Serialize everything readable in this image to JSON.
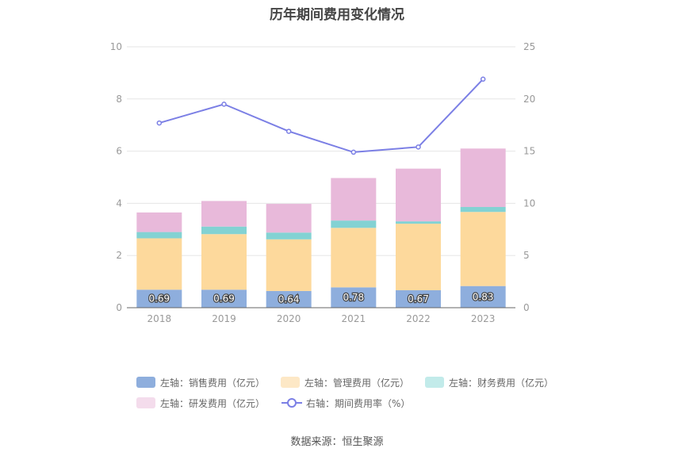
{
  "chart_data": {
    "type": "bar",
    "title": "历年期间费用变化情况",
    "categories": [
      "2018",
      "2019",
      "2020",
      "2021",
      "2022",
      "2023"
    ],
    "stacked": true,
    "left_axis": {
      "ylim": [
        0,
        10
      ],
      "ticks": [
        0,
        2,
        4,
        6,
        8,
        10
      ]
    },
    "right_axis": {
      "ylim": [
        0,
        25
      ],
      "ticks": [
        0,
        5,
        10,
        15,
        20,
        25
      ]
    },
    "series": [
      {
        "name": "左轴：销售费用（亿元）",
        "type": "bar",
        "axis": "left",
        "color": "#8eaedd",
        "values": [
          0.69,
          0.69,
          0.64,
          0.78,
          0.67,
          0.83
        ],
        "data_labels": [
          "0.69",
          "0.69",
          "0.64",
          "0.78",
          "0.67",
          "0.83"
        ]
      },
      {
        "name": "左轴：管理费用（亿元）",
        "type": "bar",
        "axis": "left",
        "color": "#fdd99c",
        "legend_color": "#fde8c6",
        "values": [
          1.97,
          2.13,
          1.98,
          2.28,
          2.55,
          2.84
        ]
      },
      {
        "name": "左轴：财务费用（亿元）",
        "type": "bar",
        "axis": "left",
        "color": "#83d2d3",
        "legend_color": "#c2ebea",
        "values": [
          0.24,
          0.29,
          0.26,
          0.28,
          0.09,
          0.19
        ]
      },
      {
        "name": "左轴：研发费用（亿元）",
        "type": "bar",
        "axis": "left",
        "color": "#e8b9da",
        "legend_color": "#f4dcec",
        "values": [
          0.75,
          0.98,
          1.1,
          1.63,
          2.02,
          2.24
        ]
      },
      {
        "name": "右轴：期间费用率（%）",
        "type": "line",
        "axis": "right",
        "color": "#7b7fe5",
        "values": [
          17.7,
          19.5,
          16.9,
          14.9,
          15.4,
          21.9
        ]
      }
    ],
    "grid": true,
    "legend_position": "bottom"
  },
  "source": "数据来源：恒生聚源"
}
